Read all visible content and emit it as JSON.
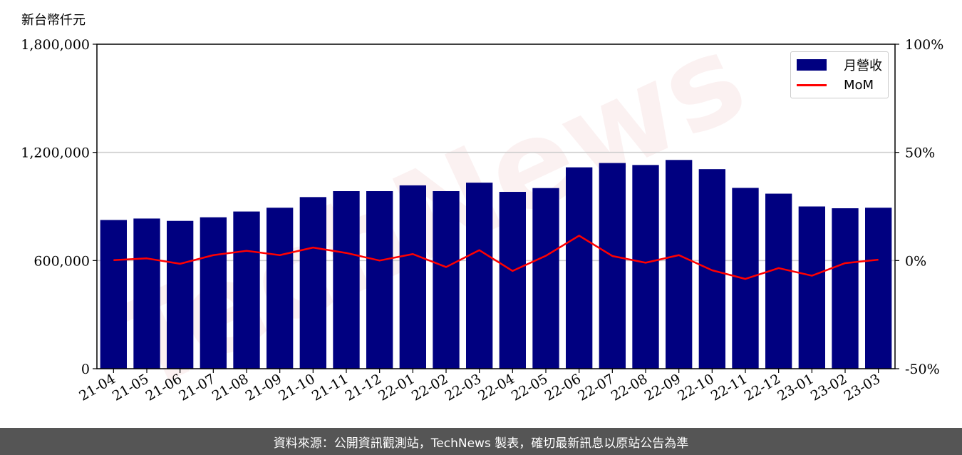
{
  "unit_label": "新台幣仟元",
  "footer_text": "資料來源：公開資訊觀測站，TechNews 製表，確切最新訊息以原站公告為準",
  "watermark_text": "TechNews",
  "colors": {
    "bar": "#000080",
    "line": "#ff0000",
    "footer_bg": "#555555"
  },
  "chart_data": {
    "type": "bar",
    "categories": [
      "21-04",
      "21-05",
      "21-06",
      "21-07",
      "21-08",
      "21-09",
      "21-10",
      "21-11",
      "21-12",
      "22-01",
      "22-02",
      "22-03",
      "22-04",
      "22-05",
      "22-06",
      "22-07",
      "22-08",
      "22-09",
      "22-10",
      "22-11",
      "22-12",
      "23-01",
      "23-02",
      "23-03"
    ],
    "series": [
      {
        "name": "月營收",
        "axis": "left",
        "type": "bar",
        "values": [
          825000,
          833000,
          820000,
          840000,
          872000,
          893000,
          952000,
          985000,
          985000,
          1017000,
          985000,
          1032000,
          981000,
          1002000,
          1117000,
          1141000,
          1130000,
          1158000,
          1107000,
          1003000,
          971000,
          900000,
          890000,
          893000
        ]
      },
      {
        "name": "MoM",
        "axis": "right",
        "type": "line",
        "values": [
          0.2,
          1.0,
          -1.5,
          2.5,
          4.5,
          2.5,
          6.0,
          3.5,
          0.0,
          3.0,
          -3.0,
          4.8,
          -4.8,
          2.2,
          11.5,
          2.1,
          -1.0,
          2.5,
          -4.5,
          -8.5,
          -3.5,
          -7.0,
          -1.2,
          0.4
        ]
      }
    ],
    "y_left": {
      "lim": [
        0,
        1800000
      ],
      "ticks": [
        "0",
        "600,000",
        "1,200,000",
        "1,800,000"
      ],
      "tick_values": [
        0,
        600000,
        1200000,
        1800000
      ]
    },
    "y_right": {
      "lim": [
        -50,
        100
      ],
      "ticks": [
        "-50%",
        "0%",
        "50%",
        "100%"
      ],
      "tick_values": [
        -50,
        0,
        50,
        100
      ]
    },
    "grid": "horizontal",
    "legend_position": "top-right"
  }
}
